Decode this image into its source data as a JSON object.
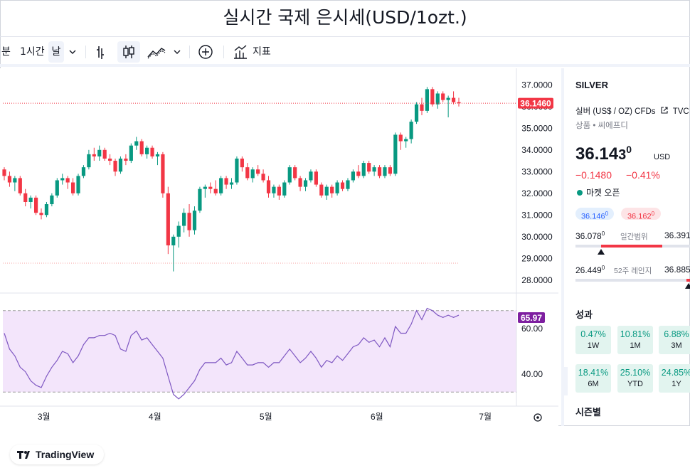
{
  "page": {
    "title": "실시간 국제 은시세(USD/1ozt.)"
  },
  "toolbar": {
    "item_minute": "분",
    "item_hour": "1시간",
    "item_day": "날",
    "indicators_label": "지표"
  },
  "chart_data": {
    "type": "candlestick",
    "symbol": "SILVER",
    "x_tick_labels": [
      "3월",
      "4월",
      "5월",
      "6월",
      "7월"
    ],
    "x_tick_positions_index": [
      7.5,
      28.5,
      49.5,
      70.5,
      91
    ],
    "price_axis": {
      "ticks": [
        "37.0000",
        "36.0000",
        "35.0000",
        "34.0000",
        "33.0000",
        "32.0000",
        "31.0000",
        "30.0000",
        "29.0000",
        "28.0000"
      ],
      "ylim": [
        27.6,
        37.5
      ]
    },
    "last_price_label": "36.1460",
    "reference_line_price": 28.78,
    "candles": [
      [
        33.1,
        33.2,
        32.6,
        32.8
      ],
      [
        32.8,
        33.0,
        32.3,
        32.5
      ],
      [
        32.5,
        32.8,
        32.1,
        32.7
      ],
      [
        32.7,
        32.8,
        31.9,
        32.0
      ],
      [
        32.0,
        32.2,
        31.4,
        31.6
      ],
      [
        31.6,
        31.9,
        31.3,
        31.8
      ],
      [
        31.8,
        31.9,
        31.0,
        31.1
      ],
      [
        31.1,
        31.3,
        30.8,
        31.0
      ],
      [
        31.0,
        31.6,
        30.9,
        31.5
      ],
      [
        31.5,
        32.0,
        31.4,
        31.9
      ],
      [
        31.9,
        32.7,
        31.8,
        32.6
      ],
      [
        32.6,
        32.9,
        32.4,
        32.7
      ],
      [
        32.7,
        32.8,
        32.2,
        32.5
      ],
      [
        32.5,
        32.7,
        31.9,
        32.0
      ],
      [
        32.0,
        32.9,
        31.9,
        32.8
      ],
      [
        32.8,
        33.3,
        32.7,
        33.2
      ],
      [
        33.2,
        34.0,
        33.1,
        33.8
      ],
      [
        33.8,
        34.1,
        33.5,
        33.7
      ],
      [
        33.7,
        34.2,
        33.5,
        34.0
      ],
      [
        34.0,
        34.1,
        33.5,
        33.6
      ],
      [
        33.6,
        33.8,
        33.3,
        33.5
      ],
      [
        33.5,
        33.6,
        32.8,
        33.0
      ],
      [
        33.0,
        33.7,
        32.9,
        33.6
      ],
      [
        33.6,
        33.8,
        33.3,
        33.5
      ],
      [
        33.5,
        34.3,
        33.4,
        34.2
      ],
      [
        34.2,
        34.6,
        34.0,
        34.4
      ],
      [
        34.4,
        34.5,
        33.7,
        33.8
      ],
      [
        33.8,
        34.2,
        33.6,
        34.1
      ],
      [
        34.1,
        34.2,
        33.6,
        33.7
      ],
      [
        33.7,
        33.9,
        33.3,
        33.8
      ],
      [
        33.8,
        33.9,
        31.8,
        32.0
      ],
      [
        32.0,
        32.3,
        29.2,
        29.6
      ],
      [
        29.6,
        30.1,
        28.4,
        30.0
      ],
      [
        30.0,
        30.7,
        29.5,
        30.5
      ],
      [
        30.5,
        31.3,
        30.2,
        31.1
      ],
      [
        31.1,
        31.5,
        30.0,
        30.3
      ],
      [
        30.3,
        31.4,
        30.1,
        31.2
      ],
      [
        31.2,
        32.3,
        31.1,
        32.2
      ],
      [
        32.2,
        32.4,
        31.8,
        32.3
      ],
      [
        32.3,
        32.5,
        32.0,
        32.2
      ],
      [
        32.2,
        32.6,
        31.9,
        32.0
      ],
      [
        32.0,
        32.8,
        31.9,
        32.7
      ],
      [
        32.7,
        32.8,
        32.2,
        32.4
      ],
      [
        32.4,
        32.7,
        32.2,
        32.5
      ],
      [
        32.5,
        33.7,
        32.4,
        33.6
      ],
      [
        33.6,
        33.7,
        33.0,
        33.2
      ],
      [
        33.2,
        33.4,
        32.6,
        32.7
      ],
      [
        32.7,
        33.2,
        32.5,
        33.1
      ],
      [
        33.1,
        33.3,
        32.8,
        32.9
      ],
      [
        32.9,
        33.1,
        32.5,
        32.6
      ],
      [
        32.6,
        32.8,
        31.8,
        32.0
      ],
      [
        32.0,
        32.4,
        31.8,
        32.3
      ],
      [
        32.3,
        32.4,
        31.7,
        31.9
      ],
      [
        31.9,
        32.6,
        31.8,
        32.5
      ],
      [
        32.5,
        33.3,
        32.4,
        33.2
      ],
      [
        33.2,
        33.3,
        32.6,
        32.7
      ],
      [
        32.7,
        32.8,
        32.1,
        32.3
      ],
      [
        32.3,
        32.7,
        32.1,
        32.6
      ],
      [
        32.6,
        33.1,
        32.5,
        33.0
      ],
      [
        33.0,
        33.1,
        32.3,
        32.4
      ],
      [
        32.4,
        32.5,
        31.8,
        31.9
      ],
      [
        31.9,
        32.4,
        31.7,
        32.3
      ],
      [
        32.3,
        32.4,
        31.8,
        32.0
      ],
      [
        32.0,
        32.6,
        31.9,
        32.5
      ],
      [
        32.5,
        32.6,
        32.1,
        32.2
      ],
      [
        32.2,
        32.7,
        32.1,
        32.6
      ],
      [
        32.6,
        33.1,
        32.5,
        33.0
      ],
      [
        33.0,
        33.3,
        32.7,
        32.8
      ],
      [
        32.8,
        33.5,
        32.7,
        33.4
      ],
      [
        33.4,
        33.5,
        32.9,
        33.0
      ],
      [
        33.0,
        33.3,
        32.8,
        33.2
      ],
      [
        33.2,
        33.3,
        32.7,
        32.8
      ],
      [
        32.8,
        33.3,
        32.7,
        33.2
      ],
      [
        33.2,
        33.3,
        32.8,
        32.9
      ],
      [
        32.9,
        34.8,
        32.8,
        34.7
      ],
      [
        34.7,
        34.8,
        34.0,
        34.4
      ],
      [
        34.4,
        34.6,
        34.1,
        34.5
      ],
      [
        34.5,
        35.4,
        34.3,
        35.3
      ],
      [
        35.3,
        36.2,
        35.2,
        36.1
      ],
      [
        36.1,
        36.4,
        35.6,
        35.8
      ],
      [
        35.8,
        36.9,
        35.7,
        36.8
      ],
      [
        36.8,
        36.9,
        36.0,
        36.1
      ],
      [
        36.1,
        36.7,
        35.9,
        36.6
      ],
      [
        36.6,
        36.7,
        36.2,
        36.3
      ],
      [
        36.3,
        36.5,
        35.5,
        36.4
      ],
      [
        36.4,
        36.7,
        36.1,
        36.2
      ],
      [
        36.2,
        36.4,
        36.0,
        36.15
      ]
    ],
    "rsi": {
      "axis_ticks": [
        "60.00",
        "40.00"
      ],
      "last_label": "65.97",
      "ylim": [
        28,
        72
      ],
      "band": [
        32,
        68
      ],
      "values": [
        58,
        51,
        48,
        43,
        41,
        37,
        35,
        34,
        39,
        43,
        46,
        50,
        49,
        45,
        48,
        53,
        56,
        56,
        57,
        57,
        58,
        57,
        51,
        50,
        57,
        59,
        55,
        56,
        53,
        50,
        47,
        39,
        31,
        29,
        31,
        34,
        37,
        42,
        45,
        45,
        45,
        47,
        44,
        45,
        50,
        47,
        44,
        44,
        45,
        45,
        43,
        45,
        45,
        48,
        51,
        48,
        45,
        47,
        50,
        47,
        43,
        46,
        45,
        48,
        46,
        49,
        52,
        53,
        56,
        54,
        55,
        52,
        56,
        52,
        61,
        58,
        58,
        62,
        68,
        64,
        69,
        68,
        66,
        65,
        66,
        65,
        66
      ]
    }
  },
  "right_panel": {
    "symbol": "SILVER",
    "description": "실버 (US$ / OZ) CFDs",
    "source": "TVC",
    "category": "상품 • 씨에프디",
    "price_main": "36.14",
    "price_tail": "3",
    "price_sup": "0",
    "currency": "USD",
    "change": "−0.1480",
    "change_pct": "−0.41%",
    "market_status": "마켓 오픈",
    "bid": "36.146",
    "bid_sup": "0",
    "ask": "36.162",
    "ask_sup": "0",
    "day_low": "36.078",
    "day_low_sup": "0",
    "day_range_label": "일간범위",
    "day_high": "36.391",
    "week52_low": "26.449",
    "week52_low_sup": "0",
    "week52_label": "52주 레인지",
    "week52_high": "36.885",
    "performance_title": "성과",
    "performance": [
      {
        "value": "0.47%",
        "label": "1W"
      },
      {
        "value": "10.81%",
        "label": "1M"
      },
      {
        "value": "6.88%",
        "label": "3M"
      },
      {
        "value": "18.41%",
        "label": "6M"
      },
      {
        "value": "25.10%",
        "label": "YTD"
      },
      {
        "value": "24.85%",
        "label": "1Y"
      }
    ],
    "seasonal_title": "시즌별"
  },
  "branding": {
    "logo_text": "TradingView"
  },
  "colors": {
    "up": "#089981",
    "down": "#f23645",
    "rsi_line": "#7e57c2",
    "rsi_band": "#f3e5fb",
    "price_label_bg": "#f23645",
    "rsi_label_bg": "#7e1fa0"
  }
}
